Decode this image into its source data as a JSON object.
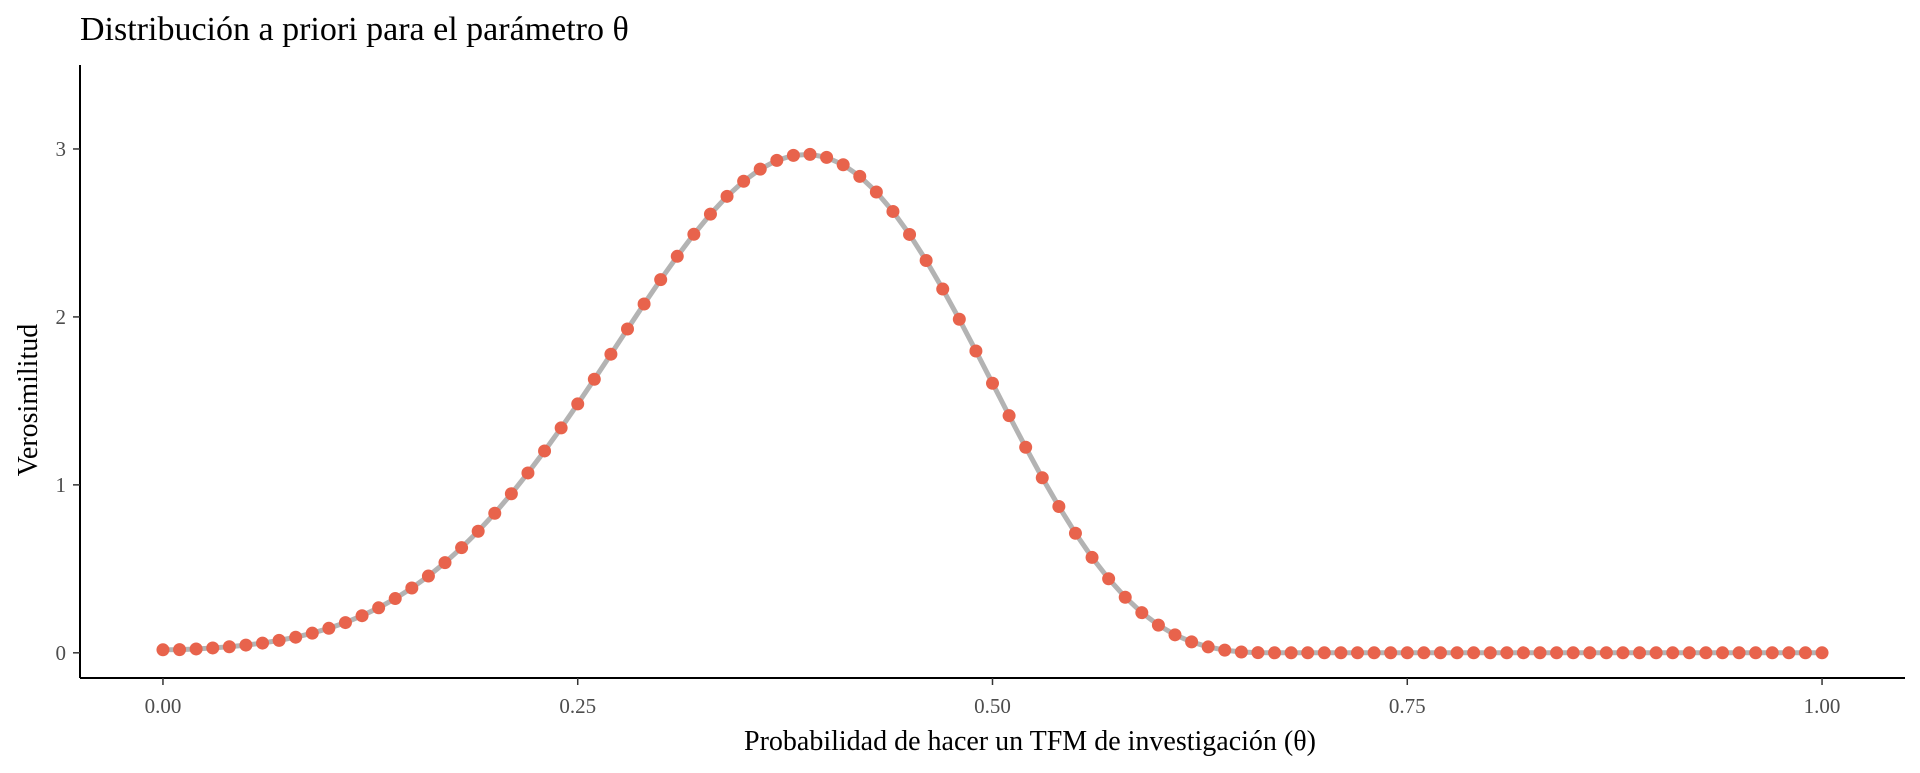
{
  "chart_data": {
    "type": "line",
    "title": "Distribución a priori para el parámetro θ",
    "xlabel": "Probabilidad de hacer un TFM de investigación (θ)",
    "ylabel": "Verosimilitud",
    "xlim": [
      -0.05,
      1.05
    ],
    "ylim": [
      -0.15,
      3.5
    ],
    "x_ticks": [
      0,
      0.25,
      0.5,
      0.75,
      1
    ],
    "x_tick_labels": [
      "0.00",
      "0.25",
      "0.50",
      "0.75",
      "1.00"
    ],
    "y_ticks": [
      0,
      1,
      2,
      3
    ],
    "y_tick_labels": [
      "0",
      "1",
      "2",
      "3"
    ],
    "grid": false,
    "legend": "none",
    "line_color": "#b3b3b3",
    "point_color": "#e8634c",
    "series": [
      {
        "x": [
          0,
          0.01,
          0.02,
          0.03,
          0.04,
          0.05,
          0.06,
          0.07,
          0.08,
          0.09,
          0.1,
          0.11,
          0.12,
          0.13,
          0.14,
          0.15,
          0.16,
          0.17,
          0.18,
          0.19,
          0.2,
          0.21,
          0.22,
          0.23,
          0.24,
          0.25,
          0.26,
          0.27,
          0.28,
          0.29,
          0.3,
          0.31,
          0.32,
          0.33,
          0.34,
          0.35,
          0.36,
          0.37,
          0.38,
          0.39,
          0.4,
          0.41,
          0.42,
          0.43,
          0.44,
          0.45,
          0.46,
          0.47,
          0.48,
          0.49,
          0.5,
          0.51,
          0.52,
          0.53,
          0.54,
          0.55,
          0.56,
          0.57,
          0.58,
          0.59,
          0.6,
          0.61,
          0.62,
          0.63,
          0.64,
          0.65,
          0.66,
          0.67,
          0.68,
          0.69,
          0.7,
          0.71,
          0.72,
          0.73,
          0.74,
          0.75,
          0.76,
          0.77,
          0.78,
          0.79,
          0.8,
          0.81,
          0.82,
          0.83,
          0.84,
          0.85,
          0.86,
          0.87,
          0.88,
          0.89,
          0.9,
          0.91,
          0.92,
          0.93,
          0.94,
          0.95,
          0.96,
          0.97,
          0.98,
          0.99,
          1
        ],
        "values": [
          0.018,
          0.019,
          0.023,
          0.029,
          0.036,
          0.046,
          0.058,
          0.074,
          0.093,
          0.117,
          0.146,
          0.18,
          0.221,
          0.268,
          0.323,
          0.386,
          0.457,
          0.537,
          0.626,
          0.724,
          0.831,
          0.947,
          1.071,
          1.202,
          1.339,
          1.482,
          1.629,
          1.778,
          1.928,
          2.077,
          2.222,
          2.361,
          2.492,
          2.612,
          2.718,
          2.808,
          2.88,
          2.932,
          2.962,
          2.968,
          2.95,
          2.906,
          2.837,
          2.744,
          2.628,
          2.491,
          2.336,
          2.166,
          1.986,
          1.797,
          1.605,
          1.412,
          1.224,
          1.042,
          0.871,
          0.712,
          0.568,
          0.441,
          0.331,
          0.239,
          0.165,
          0.107,
          0.065,
          0.035,
          0.016,
          0.005,
          0.001,
          0,
          0,
          0,
          0,
          0,
          0,
          0,
          0,
          0,
          0,
          0,
          0,
          0,
          0,
          0,
          0,
          0,
          0,
          0,
          0,
          0,
          0,
          0,
          0,
          0,
          0,
          0,
          0,
          0,
          0,
          0,
          0,
          0,
          0
        ]
      }
    ]
  }
}
